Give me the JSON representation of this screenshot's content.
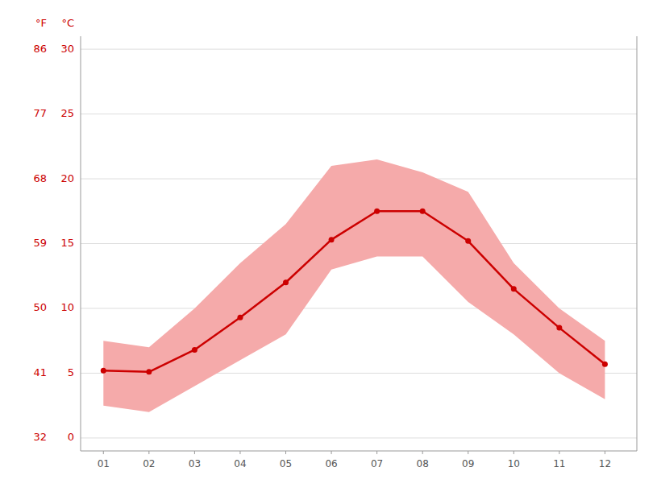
{
  "chart_data": {
    "type": "line",
    "x": [
      1,
      2,
      3,
      4,
      5,
      6,
      7,
      8,
      9,
      10,
      11,
      12
    ],
    "xlim": [
      0.5,
      12.7
    ],
    "xticks": [
      {
        "value": 1,
        "label": "01"
      },
      {
        "value": 2,
        "label": "02"
      },
      {
        "value": 3,
        "label": "03"
      },
      {
        "value": 4,
        "label": "04"
      },
      {
        "value": 5,
        "label": "05"
      },
      {
        "value": 6,
        "label": "06"
      },
      {
        "value": 7,
        "label": "07"
      },
      {
        "value": 8,
        "label": "08"
      },
      {
        "value": 9,
        "label": "09"
      },
      {
        "value": 10,
        "label": "10"
      },
      {
        "value": 11,
        "label": "11"
      },
      {
        "value": 12,
        "label": "12"
      }
    ],
    "ylim": [
      -1,
      31
    ],
    "yticks": [
      0,
      5,
      10,
      15,
      20,
      25,
      30
    ],
    "y2lim": [
      30.2,
      87.8
    ],
    "y2ticks": [
      32,
      41,
      50,
      59,
      68,
      77,
      86
    ],
    "y_label": "°C",
    "y2_label": "°F",
    "grid": true,
    "series": [
      {
        "type": "area",
        "color": "#f5aaaa",
        "low": [
          2.5,
          2.0,
          4.0,
          6.0,
          8.0,
          13.0,
          14.0,
          14.0,
          10.5,
          8.0,
          5.0,
          3.0
        ],
        "high": [
          7.5,
          7.0,
          10.0,
          13.5,
          16.5,
          21.0,
          21.5,
          20.5,
          19.0,
          13.5,
          10.0,
          7.5
        ]
      },
      {
        "type": "line",
        "color": "#cc0000",
        "marker": "circle",
        "values": [
          5.2,
          5.1,
          6.8,
          9.3,
          12.0,
          15.3,
          17.5,
          17.5,
          15.2,
          11.5,
          8.5,
          5.7
        ]
      }
    ]
  }
}
